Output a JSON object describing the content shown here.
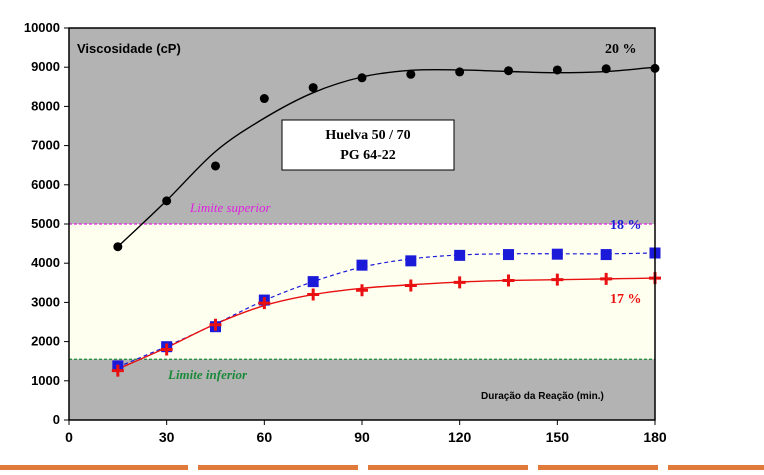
{
  "chart_data": {
    "type": "scatter",
    "ylabel": "Viscosidade (cP)",
    "xlabel": "Duração da Reação (min.)",
    "xlim": [
      0,
      180
    ],
    "ylim": [
      0,
      10000
    ],
    "x_ticks": [
      0,
      30,
      60,
      90,
      120,
      150,
      180
    ],
    "y_ticks": [
      0,
      1000,
      2000,
      3000,
      4000,
      5000,
      6000,
      7000,
      8000,
      9000,
      10000
    ],
    "grid": false,
    "plot_background": "#b3b3b3",
    "legend_box": {
      "lines": [
        "Huelva 50 / 70",
        "PG 64-22"
      ]
    },
    "limits": {
      "upper": {
        "label": "Limite superior",
        "value": 5000,
        "color": "#e020e0"
      },
      "lower": {
        "label": "Limite inferior",
        "value": 1550,
        "color": "#1a8a3a"
      },
      "band_color": "#fffff0"
    },
    "series": [
      {
        "name": "20 %",
        "color": "#000000",
        "marker": "circle",
        "curve": "solid",
        "x": [
          15,
          30,
          45,
          60,
          75,
          90,
          105,
          120,
          135,
          150,
          165,
          180
        ],
        "y": [
          4420,
          5590,
          6480,
          8200,
          8480,
          8730,
          8820,
          8880,
          8910,
          8930,
          8960,
          8970
        ]
      },
      {
        "name": "18 %",
        "color": "#1a1ad8",
        "marker": "square",
        "curve": "dashed",
        "x": [
          15,
          30,
          45,
          60,
          75,
          90,
          105,
          120,
          135,
          150,
          165,
          180
        ],
        "y": [
          1380,
          1870,
          2380,
          3060,
          3530,
          3950,
          4060,
          4200,
          4220,
          4230,
          4220,
          4260
        ]
      },
      {
        "name": "17 %",
        "color": "#e81010",
        "marker": "plus",
        "curve": "solid",
        "x": [
          15,
          30,
          45,
          60,
          75,
          90,
          105,
          120,
          135,
          150,
          165,
          180
        ],
        "y": [
          1260,
          1800,
          2430,
          2980,
          3200,
          3310,
          3430,
          3510,
          3560,
          3580,
          3600,
          3620
        ]
      }
    ],
    "fit_curves": {
      "20 %": [
        [
          15,
          4420
        ],
        [
          30,
          5600
        ],
        [
          45,
          6850
        ],
        [
          60,
          7700
        ],
        [
          75,
          8350
        ],
        [
          90,
          8750
        ],
        [
          105,
          8920
        ],
        [
          120,
          8930
        ],
        [
          135,
          8890
        ],
        [
          150,
          8860
        ],
        [
          165,
          8890
        ],
        [
          180,
          9000
        ]
      ],
      "18 %": [
        [
          15,
          1350
        ],
        [
          30,
          1880
        ],
        [
          45,
          2450
        ],
        [
          60,
          3050
        ],
        [
          75,
          3530
        ],
        [
          90,
          3900
        ],
        [
          105,
          4110
        ],
        [
          120,
          4210
        ],
        [
          135,
          4240
        ],
        [
          150,
          4240
        ],
        [
          165,
          4240
        ],
        [
          180,
          4260
        ]
      ],
      "17 %": [
        [
          15,
          1300
        ],
        [
          30,
          1850
        ],
        [
          45,
          2450
        ],
        [
          60,
          2920
        ],
        [
          75,
          3200
        ],
        [
          90,
          3360
        ],
        [
          105,
          3450
        ],
        [
          120,
          3520
        ],
        [
          135,
          3560
        ],
        [
          150,
          3580
        ],
        [
          165,
          3600
        ],
        [
          180,
          3620
        ]
      ]
    }
  }
}
